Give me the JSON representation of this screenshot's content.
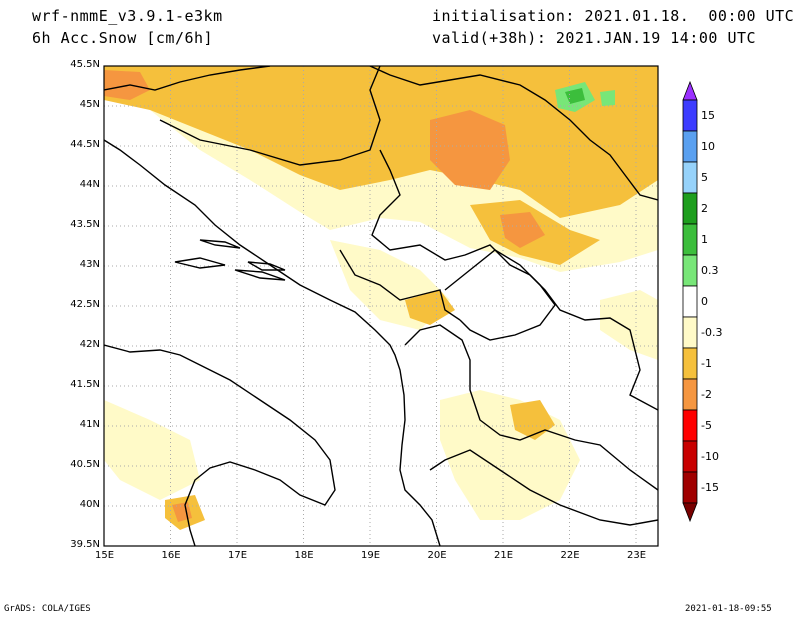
{
  "header": {
    "model": "wrf-nmmE_v3.9.1-e3km",
    "variable": "6h Acc.Snow [cm/6h]",
    "init": "initialisation: 2021.01.18.  00:00 UTC",
    "valid": "valid(+38h): 2021.JAN.19 14:00 UTC"
  },
  "lat_labels": [
    "45.5N",
    "45N",
    "44.5N",
    "44N",
    "43.5N",
    "43N",
    "42.5N",
    "42N",
    "41.5N",
    "41N",
    "40.5N",
    "40N",
    "39.5N"
  ],
  "lon_labels": [
    "15E",
    "16E",
    "17E",
    "18E",
    "19E",
    "20E",
    "21E",
    "22E",
    "23E"
  ],
  "colorbar": {
    "labels": [
      "15",
      "10",
      "5",
      "2",
      "1",
      "0.3",
      "0",
      "-0.3",
      "-1",
      "-2",
      "-5",
      "-10",
      "-15"
    ],
    "colors": [
      "#9b30ff",
      "#3c3cff",
      "#5aa0f0",
      "#96d2fa",
      "#1e9e1e",
      "#3cbe3c",
      "#78e678",
      "#ffffff",
      "#fffac8",
      "#f5c03c",
      "#f59640",
      "#ff0000",
      "#c80000",
      "#a00000",
      "#780000"
    ]
  },
  "footer": {
    "left": "GrADS: COLA/IGES",
    "right": "2021-01-18-09:55"
  }
}
